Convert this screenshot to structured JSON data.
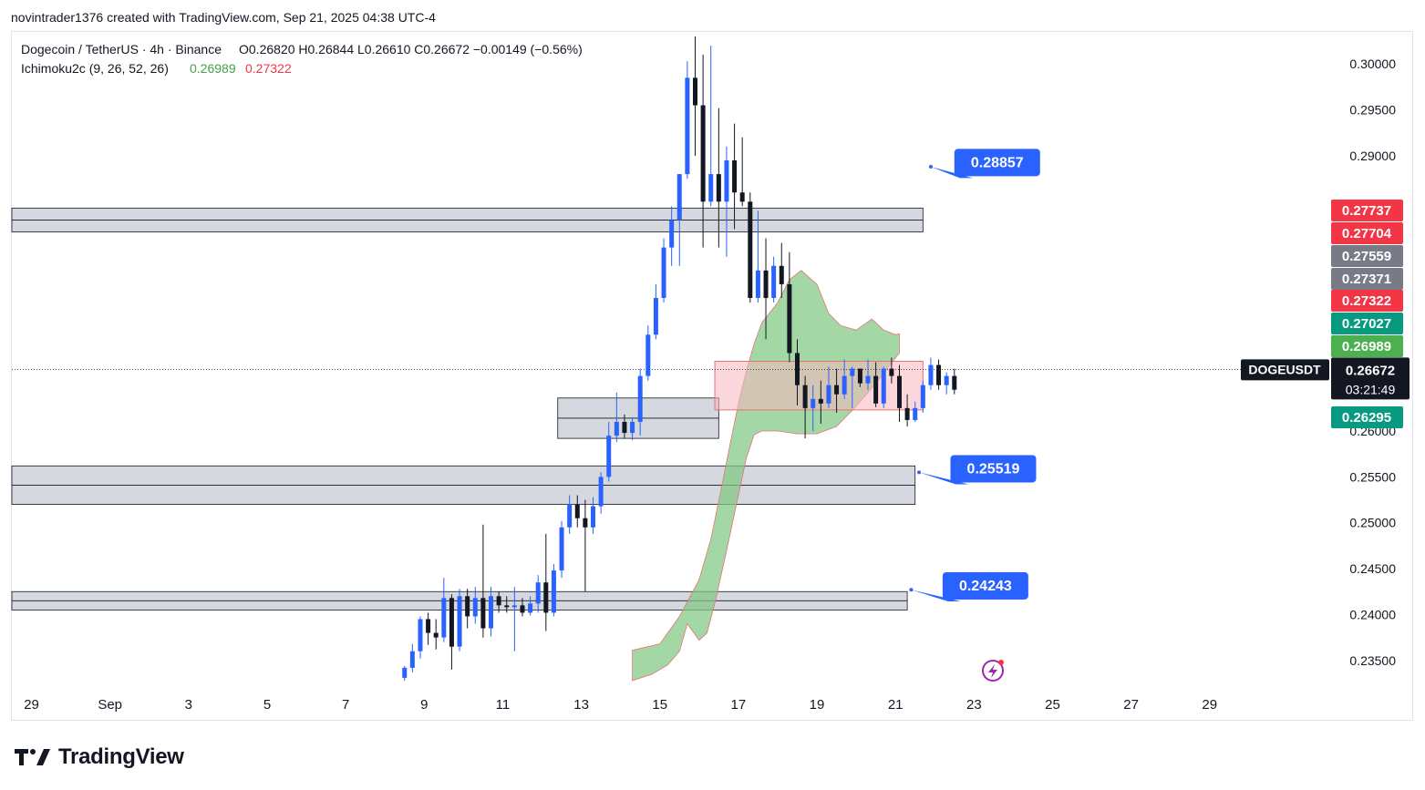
{
  "byline": "novintrader1376 created with TradingView.com, Sep 21, 2025 04:38 UTC-4",
  "brand": "TradingView",
  "legend": {
    "symbol": "Dogecoin / TetherUS · 4h · Binance",
    "ohlc": "O0.26820 H0.26844 L0.26610 C0.26672 −0.00149 (−0.56%)",
    "indicator_name": "Ichimoku2c (9, 26, 52, 26)",
    "indicator_value_1": "0.26989",
    "indicator_value_2": "0.27322"
  },
  "chart_data": {
    "type": "candlestick",
    "symbol": "DOGEUSDT",
    "timeframe": "4h",
    "ylim": [
      0.232,
      0.3035
    ],
    "xlim": [
      -0.5,
      33
    ],
    "x_ticks": [
      {
        "label": "29",
        "day": 0
      },
      {
        "label": "Sep",
        "day": 2
      },
      {
        "label": "3",
        "day": 4
      },
      {
        "label": "5",
        "day": 6
      },
      {
        "label": "7",
        "day": 8
      },
      {
        "label": "9",
        "day": 10
      },
      {
        "label": "11",
        "day": 12
      },
      {
        "label": "13",
        "day": 14
      },
      {
        "label": "15",
        "day": 16
      },
      {
        "label": "17",
        "day": 18
      },
      {
        "label": "19",
        "day": 20
      },
      {
        "label": "21",
        "day": 22
      },
      {
        "label": "23",
        "day": 24
      },
      {
        "label": "25",
        "day": 26
      },
      {
        "label": "27",
        "day": 28
      },
      {
        "label": "29",
        "day": 30
      }
    ],
    "y_ticks": [
      "0.30000",
      "0.29500",
      "0.29000",
      "0.26000",
      "0.25500",
      "0.25000",
      "0.24500",
      "0.24000",
      "0.23500"
    ],
    "price_tags": [
      {
        "label": "0.27737",
        "value": 0.27737,
        "color": "#f23645"
      },
      {
        "label": "0.27704",
        "value": 0.27704,
        "color": "#f23645"
      },
      {
        "label": "0.27559",
        "value": 0.27559,
        "color": "#787b86"
      },
      {
        "label": "0.27371",
        "value": 0.27371,
        "color": "#787b86"
      },
      {
        "label": "0.27322",
        "value": 0.27322,
        "color": "#f23645"
      },
      {
        "label": "0.27027",
        "value": 0.27027,
        "color": "#089981"
      },
      {
        "label": "0.26989",
        "value": 0.26989,
        "color": "#4caf50"
      },
      {
        "label": "0.26295",
        "value": 0.26295,
        "color": "#089981"
      }
    ],
    "last_price": {
      "symbol_label": "DOGEUSDT",
      "price": "0.26672",
      "countdown": "03:21:49",
      "value": 0.26672
    },
    "zones": [
      {
        "from_day": -0.5,
        "to_day": 22.7,
        "low": 0.2817,
        "high": 0.2843,
        "mid": 0.283
      },
      {
        "from_day": 13.4,
        "to_day": 17.5,
        "low": 0.2592,
        "high": 0.2636,
        "mid": 0.2614
      },
      {
        "from_day": -0.5,
        "to_day": 22.5,
        "low": 0.252,
        "high": 0.2562,
        "mid": 0.2541
      },
      {
        "from_day": -0.5,
        "to_day": 22.3,
        "low": 0.2405,
        "high": 0.2425,
        "mid": 0.2415
      }
    ],
    "red_box": {
      "from_day": 17.4,
      "to_day": 22.7,
      "low": 0.2623,
      "high": 0.2676
    },
    "callouts": [
      {
        "label": "0.28857",
        "value": 0.28857,
        "label_day": 23.5,
        "tip_day": 22.9,
        "tip_value": 0.2888
      },
      {
        "label": "0.25519",
        "value": 0.25519,
        "label_day": 23.4,
        "tip_day": 22.6,
        "tip_value": 0.2555
      },
      {
        "label": "0.24243",
        "value": 0.24243,
        "label_day": 23.2,
        "tip_day": 22.4,
        "tip_value": 0.2427
      }
    ],
    "cloud_upper": [
      [
        15.3,
        0.2361
      ],
      [
        16.0,
        0.2368
      ],
      [
        16.5,
        0.2398
      ],
      [
        17.0,
        0.2438
      ],
      [
        17.3,
        0.2482
      ],
      [
        17.6,
        0.2545
      ],
      [
        17.8,
        0.2588
      ],
      [
        18.0,
        0.263
      ],
      [
        18.2,
        0.2665
      ],
      [
        18.4,
        0.2695
      ],
      [
        18.6,
        0.2718
      ],
      [
        19.0,
        0.274
      ],
      [
        19.3,
        0.2765
      ],
      [
        19.6,
        0.2775
      ],
      [
        20.0,
        0.276
      ],
      [
        20.3,
        0.2728
      ],
      [
        20.6,
        0.2715
      ],
      [
        21.0,
        0.271
      ],
      [
        21.4,
        0.2722
      ],
      [
        21.7,
        0.271
      ],
      [
        22.0,
        0.2705
      ],
      [
        22.1,
        0.2706
      ]
    ],
    "cloud_lower": [
      [
        22.1,
        0.2685
      ],
      [
        21.5,
        0.2652
      ],
      [
        21.0,
        0.2627
      ],
      [
        20.5,
        0.2605
      ],
      [
        20.0,
        0.2597
      ],
      [
        19.5,
        0.2597
      ],
      [
        19.0,
        0.26
      ],
      [
        18.6,
        0.26
      ],
      [
        18.4,
        0.2596
      ],
      [
        18.2,
        0.257
      ],
      [
        18.0,
        0.253
      ],
      [
        17.7,
        0.247
      ],
      [
        17.4,
        0.2412
      ],
      [
        17.2,
        0.238
      ],
      [
        17.0,
        0.2372
      ],
      [
        16.7,
        0.239
      ],
      [
        16.5,
        0.236
      ],
      [
        16.2,
        0.2345
      ],
      [
        15.8,
        0.2335
      ],
      [
        15.3,
        0.2328
      ]
    ],
    "candles": [
      [
        9.5,
        0.2331,
        0.2342,
        0.2328,
        0.2344
      ],
      [
        9.7,
        0.2342,
        0.236,
        0.2337,
        0.2368
      ],
      [
        9.9,
        0.236,
        0.2395,
        0.2352,
        0.2398
      ],
      [
        10.1,
        0.2395,
        0.238,
        0.2367,
        0.2402
      ],
      [
        10.3,
        0.238,
        0.2375,
        0.2362,
        0.2395
      ],
      [
        10.5,
        0.2375,
        0.2418,
        0.237,
        0.244
      ],
      [
        10.7,
        0.2418,
        0.2365,
        0.234,
        0.2422
      ],
      [
        10.9,
        0.2365,
        0.242,
        0.236,
        0.2428
      ],
      [
        11.1,
        0.242,
        0.2398,
        0.2385,
        0.2428
      ],
      [
        11.3,
        0.2398,
        0.2418,
        0.239,
        0.243
      ],
      [
        11.5,
        0.2418,
        0.2385,
        0.2375,
        0.2498
      ],
      [
        11.7,
        0.2385,
        0.242,
        0.2376,
        0.243
      ],
      [
        11.9,
        0.242,
        0.241,
        0.2402,
        0.2425
      ],
      [
        12.1,
        0.241,
        0.2408,
        0.2402,
        0.242
      ],
      [
        12.3,
        0.2408,
        0.241,
        0.236,
        0.243
      ],
      [
        12.5,
        0.241,
        0.2402,
        0.2398,
        0.2418
      ],
      [
        12.7,
        0.2402,
        0.2412,
        0.2399,
        0.242
      ],
      [
        12.9,
        0.2412,
        0.2435,
        0.2402,
        0.2443
      ],
      [
        13.1,
        0.2435,
        0.2402,
        0.2382,
        0.2488
      ],
      [
        13.3,
        0.2402,
        0.2448,
        0.2398,
        0.2455
      ],
      [
        13.5,
        0.2448,
        0.2495,
        0.244,
        0.2502
      ],
      [
        13.7,
        0.2495,
        0.252,
        0.2488,
        0.253
      ],
      [
        13.9,
        0.252,
        0.2505,
        0.2495,
        0.253
      ],
      [
        14.1,
        0.2505,
        0.2495,
        0.2425,
        0.2525
      ],
      [
        14.3,
        0.2495,
        0.2518,
        0.2488,
        0.2528
      ],
      [
        14.5,
        0.2518,
        0.255,
        0.251,
        0.2555
      ],
      [
        14.7,
        0.255,
        0.2595,
        0.2545,
        0.261
      ],
      [
        14.9,
        0.2595,
        0.261,
        0.2588,
        0.2642
      ],
      [
        15.1,
        0.261,
        0.2598,
        0.2592,
        0.2618
      ],
      [
        15.3,
        0.2598,
        0.261,
        0.259,
        0.2615
      ],
      [
        15.5,
        0.261,
        0.266,
        0.2595,
        0.2668
      ],
      [
        15.7,
        0.266,
        0.2705,
        0.2655,
        0.2715
      ],
      [
        15.9,
        0.2705,
        0.2745,
        0.27,
        0.276
      ],
      [
        16.1,
        0.2745,
        0.28,
        0.274,
        0.281
      ],
      [
        16.3,
        0.28,
        0.283,
        0.278,
        0.2845
      ],
      [
        16.5,
        0.283,
        0.288,
        0.278,
        0.288
      ],
      [
        16.7,
        0.288,
        0.2985,
        0.2875,
        0.3003
      ],
      [
        16.9,
        0.2985,
        0.2955,
        0.29,
        0.303
      ],
      [
        17.1,
        0.2955,
        0.285,
        0.28,
        0.301
      ],
      [
        17.3,
        0.285,
        0.288,
        0.2845,
        0.302
      ],
      [
        17.5,
        0.288,
        0.285,
        0.28,
        0.2952
      ],
      [
        17.7,
        0.285,
        0.2895,
        0.279,
        0.291
      ],
      [
        17.9,
        0.2895,
        0.286,
        0.282,
        0.2935
      ],
      [
        18.1,
        0.286,
        0.285,
        0.2845,
        0.292
      ],
      [
        18.3,
        0.285,
        0.2745,
        0.274,
        0.286
      ],
      [
        18.5,
        0.2745,
        0.2775,
        0.274,
        0.284
      ],
      [
        18.7,
        0.2775,
        0.2745,
        0.27,
        0.281
      ],
      [
        18.9,
        0.2745,
        0.278,
        0.274,
        0.279
      ],
      [
        19.1,
        0.278,
        0.276,
        0.2745,
        0.2805
      ],
      [
        19.3,
        0.276,
        0.2685,
        0.2675,
        0.2795
      ],
      [
        19.5,
        0.2685,
        0.265,
        0.2628,
        0.27
      ],
      [
        19.7,
        0.265,
        0.2625,
        0.2592,
        0.266
      ],
      [
        19.9,
        0.2625,
        0.2635,
        0.26,
        0.265
      ],
      [
        20.1,
        0.2635,
        0.263,
        0.2608,
        0.2655
      ],
      [
        20.3,
        0.263,
        0.265,
        0.2625,
        0.267
      ],
      [
        20.5,
        0.265,
        0.264,
        0.262,
        0.2668
      ],
      [
        20.7,
        0.264,
        0.266,
        0.2635,
        0.2678
      ],
      [
        20.9,
        0.266,
        0.2668,
        0.2625,
        0.267
      ],
      [
        21.1,
        0.2668,
        0.2652,
        0.2648,
        0.2668
      ],
      [
        21.3,
        0.2652,
        0.266,
        0.2645,
        0.2678
      ],
      [
        21.5,
        0.266,
        0.263,
        0.2626,
        0.2675
      ],
      [
        21.7,
        0.263,
        0.2668,
        0.2625,
        0.267
      ],
      [
        21.9,
        0.2668,
        0.266,
        0.2652,
        0.268
      ],
      [
        22.1,
        0.266,
        0.2625,
        0.261,
        0.2672
      ],
      [
        22.3,
        0.2625,
        0.2612,
        0.2605,
        0.264
      ],
      [
        22.5,
        0.2612,
        0.2625,
        0.261,
        0.2632
      ],
      [
        22.7,
        0.2625,
        0.265,
        0.262,
        0.2655
      ],
      [
        22.9,
        0.265,
        0.2672,
        0.2645,
        0.268
      ],
      [
        23.1,
        0.2672,
        0.265,
        0.2645,
        0.2678
      ],
      [
        23.3,
        0.265,
        0.266,
        0.264,
        0.2664
      ],
      [
        23.5,
        0.266,
        0.2645,
        0.264,
        0.2668
      ]
    ],
    "colors": {
      "up": "#2962ff",
      "down": "#131722",
      "cloud": "#81c784",
      "zone": "#d1d4dc",
      "red_box": "#f7b7bd",
      "callout": "#2962ff"
    }
  }
}
